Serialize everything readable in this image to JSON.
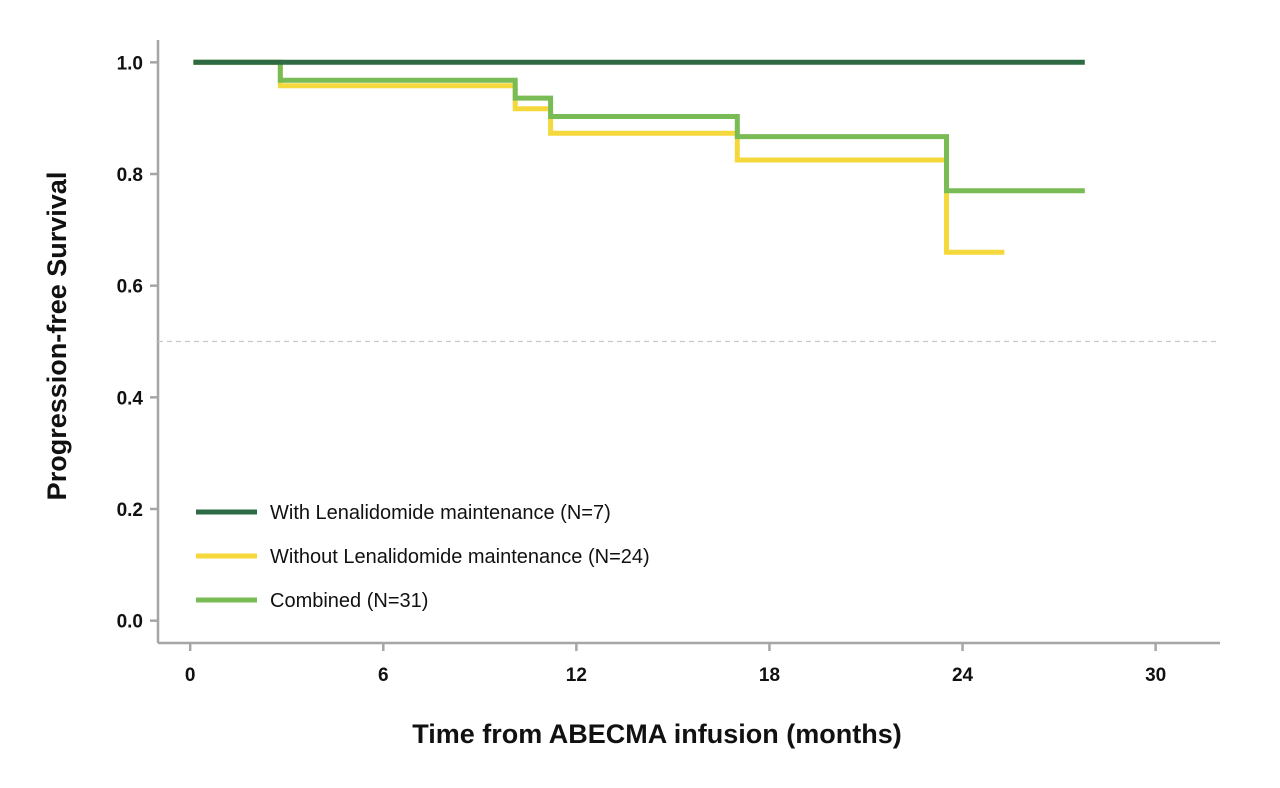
{
  "chart_data": {
    "type": "line",
    "subtype": "kaplan-meier step curve",
    "title": "",
    "xlabel": "Time from ABECMA infusion (months)",
    "ylabel": "Progression-free Survival",
    "xlim": [
      -1,
      32
    ],
    "ylim": [
      -0.04,
      1.04
    ],
    "xticks": [
      0,
      6,
      12,
      18,
      24,
      30
    ],
    "xtick_labels": [
      "0",
      "6",
      "12",
      "18",
      "24",
      "30"
    ],
    "yticks": [
      0.0,
      0.2,
      0.4,
      0.6,
      0.8,
      1.0
    ],
    "ytick_labels": [
      "0.0",
      "0.2",
      "0.4",
      "0.6",
      "0.8",
      "1.0"
    ],
    "reference_line": {
      "y": 0.5,
      "style": "dashed"
    },
    "legend_position": "bottom-left",
    "series": [
      {
        "name": "With Lenalidomide maintenance (N=7)",
        "color": "#2e6b45",
        "steps": {
          "x": [
            0.1,
            27.8
          ],
          "y": [
            1.0,
            1.0
          ]
        }
      },
      {
        "name": "Without Lenalidomide maintenance (N=24)",
        "color": "#f5d93c",
        "steps": {
          "x": [
            0.1,
            2.8,
            10.1,
            11.2,
            17.0,
            23.5,
            25.3
          ],
          "y": [
            1.0,
            0.958,
            0.917,
            0.873,
            0.825,
            0.66,
            0.66
          ]
        }
      },
      {
        "name": "Combined (N=31)",
        "color": "#79bb55",
        "steps": {
          "x": [
            0.1,
            2.8,
            10.1,
            11.2,
            17.0,
            23.5,
            27.8
          ],
          "y": [
            1.0,
            0.968,
            0.936,
            0.903,
            0.867,
            0.77,
            0.77
          ]
        }
      }
    ]
  },
  "colors": {
    "axis": "#a6a6a6",
    "reference_line": "#c8c8c8",
    "text": "#111111",
    "background": "#ffffff"
  }
}
